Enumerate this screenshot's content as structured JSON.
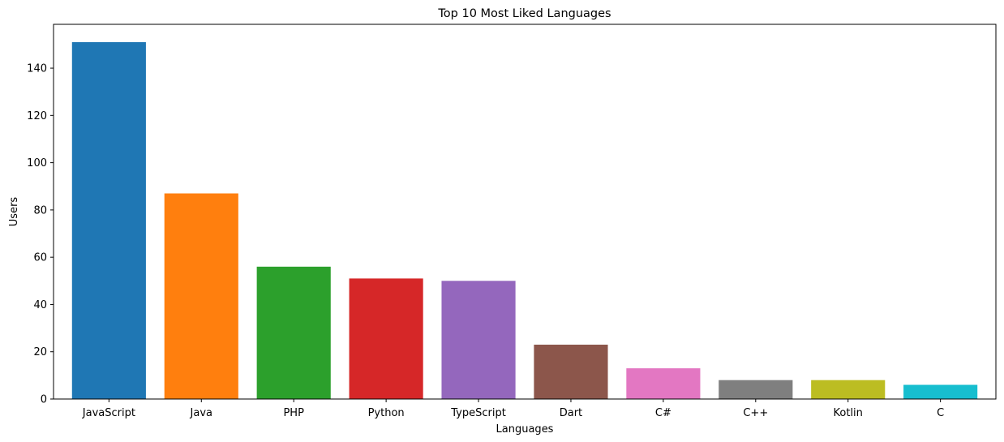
{
  "chart_data": {
    "type": "bar",
    "title": "Top 10 Most Liked Languages",
    "xlabel": "Languages",
    "ylabel": "Users",
    "categories": [
      "JavaScript",
      "Java",
      "PHP",
      "Python",
      "TypeScript",
      "Dart",
      "C#",
      "C++",
      "Kotlin",
      "C"
    ],
    "values": [
      151,
      87,
      56,
      51,
      50,
      23,
      13,
      8,
      8,
      6
    ],
    "colors": [
      "#1f77b4",
      "#ff7f0e",
      "#2ca02c",
      "#d62728",
      "#9467bd",
      "#8c564b",
      "#e377c2",
      "#7f7f7f",
      "#bcbd22",
      "#17becf"
    ],
    "ylim": [
      0,
      158.55
    ],
    "yticks": [
      0,
      20,
      40,
      60,
      80,
      100,
      120,
      140
    ],
    "grid": false,
    "legend": "none"
  }
}
